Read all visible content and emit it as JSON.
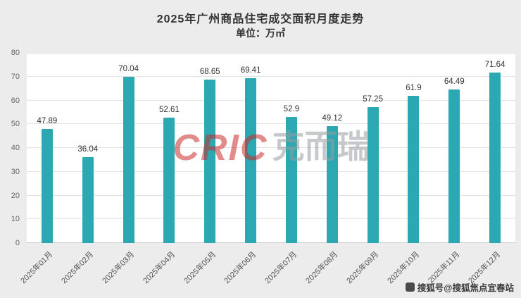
{
  "chart": {
    "title": "2025年广州商品住宅成交面积月度走势",
    "subtitle": "单位：万㎡"
  },
  "chart_data": {
    "type": "bar",
    "title": "2025年广州商品住宅成交面积月度走势",
    "subtitle": "单位：万㎡",
    "categories": [
      "2025年01月",
      "2025年02月",
      "2025年03月",
      "2025年04月",
      "2025年05月",
      "2025年06月",
      "2025年07月",
      "2025年08月",
      "2025年09月",
      "2025年10月",
      "2025年11月",
      "2025年12月"
    ],
    "values": [
      47.89,
      36.04,
      70.04,
      52.61,
      68.65,
      69.41,
      52.9,
      49.12,
      57.25,
      61.9,
      64.49,
      71.64
    ],
    "xlabel": "",
    "ylabel": "",
    "ylim": [
      0,
      80
    ],
    "ytick_step": 10,
    "grid": true,
    "legend": "none",
    "bar_color": "#2BA8B2",
    "value_label_color": "#333333",
    "plot_background": "#ffffff",
    "page_background": "#ececec"
  },
  "watermark": {
    "brand": "CRIC",
    "brand_suffix": "克而瑞"
  },
  "footer": {
    "credit": "搜狐号@搜狐焦点宜春站"
  }
}
